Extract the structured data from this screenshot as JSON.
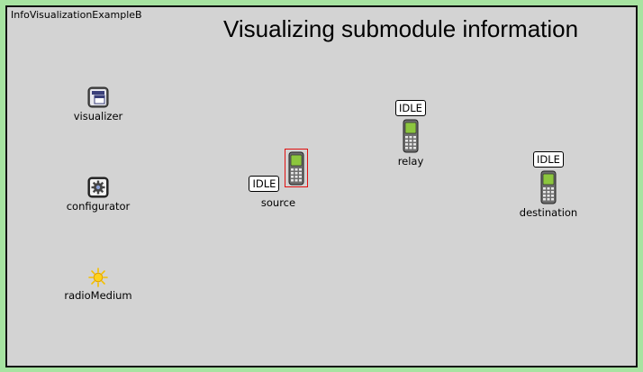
{
  "network": {
    "name": "InfoVisualizationExampleB"
  },
  "title": "Visualizing submodule information",
  "modules": {
    "visualizer": {
      "label": "visualizer",
      "icon": "window-icon"
    },
    "configurator": {
      "label": "configurator",
      "icon": "gear-icon"
    },
    "radioMedium": {
      "label": "radioMedium",
      "icon": "sun-icon"
    },
    "source": {
      "label": "source",
      "icon": "cellphone-icon",
      "status": "IDLE",
      "selected": true
    },
    "relay": {
      "label": "relay",
      "icon": "cellphone-icon",
      "status": "IDLE"
    },
    "destination": {
      "label": "destination",
      "icon": "cellphone-icon",
      "status": "IDLE"
    }
  },
  "colors": {
    "frame_background": "#a7e3a1",
    "canvas_background": "#d3d3d3",
    "selection_border": "#e01010",
    "phone_screen": "#8cc63e",
    "sun": "#f5c000"
  }
}
